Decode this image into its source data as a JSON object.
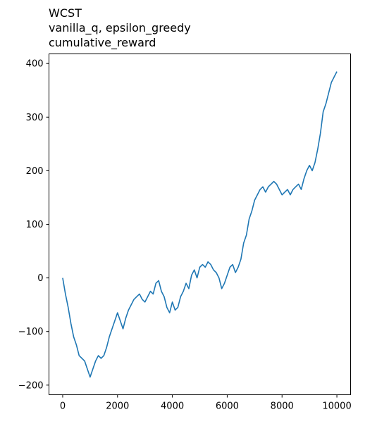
{
  "chart_data": {
    "type": "line",
    "title_lines": [
      "WCST",
      "vanilla_q, epsilon_greedy",
      "cumulative_reward"
    ],
    "xlabel": "",
    "ylabel": "",
    "xlim": [
      -500,
      10500
    ],
    "ylim": [
      -218,
      418
    ],
    "xticks": [
      0,
      2000,
      4000,
      6000,
      8000,
      10000
    ],
    "yticks": [
      -200,
      -100,
      0,
      100,
      200,
      300,
      400
    ],
    "grid": false,
    "legend": "none",
    "series": [
      {
        "color": "#1f77b4",
        "x": [
          0,
          100,
          200,
          300,
          400,
          500,
          600,
          700,
          800,
          900,
          1000,
          1100,
          1200,
          1300,
          1400,
          1500,
          1600,
          1700,
          1800,
          1900,
          2000,
          2100,
          2200,
          2300,
          2400,
          2500,
          2600,
          2700,
          2800,
          2900,
          3000,
          3100,
          3200,
          3300,
          3400,
          3500,
          3600,
          3700,
          3800,
          3900,
          4000,
          4100,
          4200,
          4300,
          4400,
          4500,
          4600,
          4700,
          4800,
          4900,
          5000,
          5100,
          5200,
          5300,
          5400,
          5500,
          5600,
          5700,
          5800,
          5900,
          6000,
          6100,
          6200,
          6300,
          6400,
          6500,
          6600,
          6700,
          6800,
          6900,
          7000,
          7100,
          7200,
          7300,
          7400,
          7500,
          7600,
          7700,
          7800,
          7900,
          8000,
          8100,
          8200,
          8300,
          8400,
          8500,
          8600,
          8700,
          8800,
          8900,
          9000,
          9100,
          9200,
          9300,
          9400,
          9500,
          9600,
          9700,
          9800,
          9900,
          10000
        ],
        "y": [
          0,
          -30,
          -55,
          -85,
          -110,
          -125,
          -145,
          -150,
          -155,
          -170,
          -185,
          -170,
          -155,
          -145,
          -150,
          -145,
          -130,
          -110,
          -95,
          -80,
          -65,
          -80,
          -95,
          -75,
          -60,
          -50,
          -40,
          -35,
          -30,
          -40,
          -45,
          -35,
          -25,
          -30,
          -10,
          -5,
          -25,
          -35,
          -55,
          -65,
          -45,
          -60,
          -55,
          -35,
          -25,
          -10,
          -20,
          5,
          15,
          0,
          20,
          25,
          20,
          30,
          25,
          15,
          10,
          0,
          -20,
          -10,
          5,
          20,
          25,
          10,
          20,
          35,
          65,
          80,
          110,
          125,
          145,
          155,
          165,
          170,
          160,
          170,
          175,
          180,
          175,
          165,
          155,
          160,
          165,
          155,
          165,
          170,
          175,
          165,
          185,
          200,
          210,
          200,
          215,
          240,
          270,
          310,
          325,
          345,
          365,
          375,
          385
        ]
      }
    ]
  }
}
